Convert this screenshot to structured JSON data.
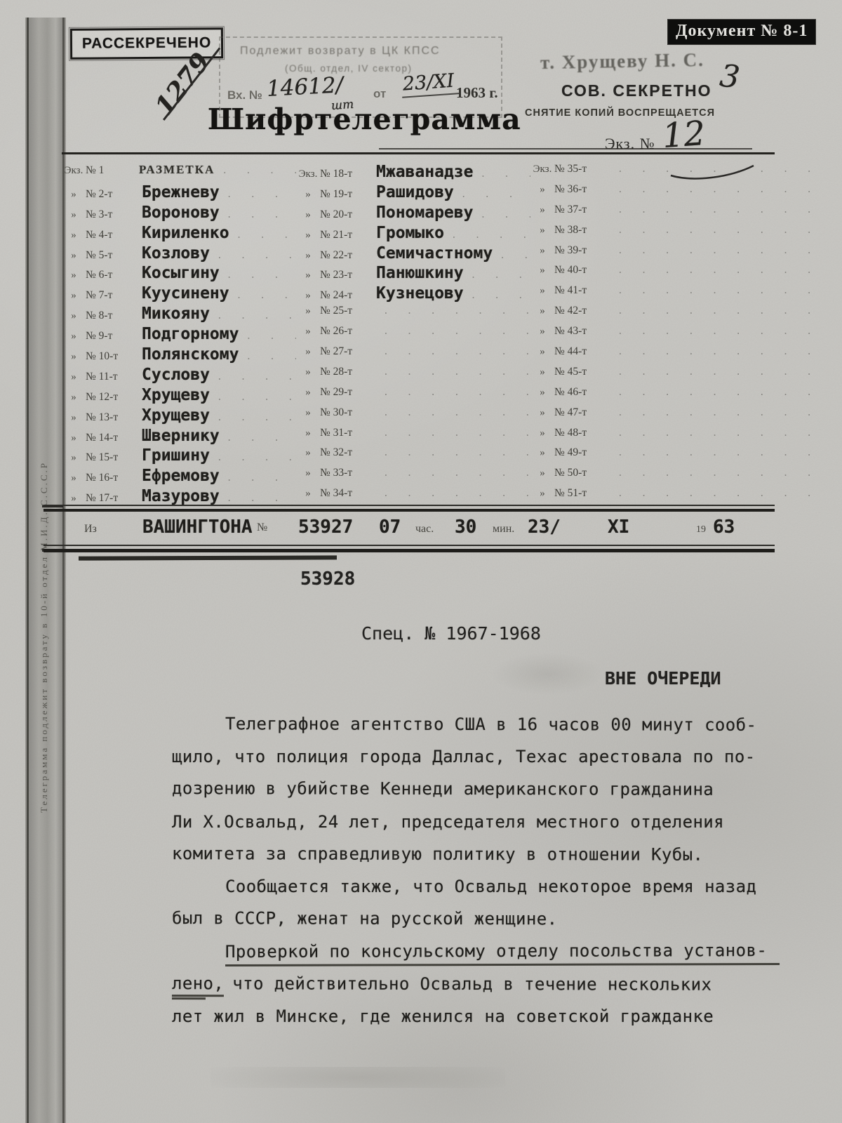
{
  "header": {
    "declassified": "РАССЕКРЕЧЕНО",
    "doc_badge": "Документ № 8-1",
    "reg_stamp": {
      "line1": "Подлежит возврату в ЦК КПСС",
      "line2": "(Общ. отдел, IV сектор)",
      "in_label": "Вх. №",
      "number_hw": "14612/",
      "suffix_hw": "шт",
      "from_label": "от",
      "date_hw": "23/XI",
      "year": "1963 г."
    },
    "hw_1279": "1279",
    "addressee_stamp": "т. Хрущеву Н. С.",
    "hw_3": "3",
    "secrecy": "СОВ. СЕКРЕТНО",
    "no_copies": "СНЯТИЕ КОПИЙ ВОСПРЕЩАЕТСЯ",
    "copy_label": "Экз. №",
    "copy_hw": "12",
    "title": "Шифртелеграмма"
  },
  "distribution": {
    "columns": [
      {
        "rows": [
          {
            "m": "Экз.",
            "n": "№ 1",
            "name": "РАЗМЕТКА",
            "print": true
          },
          {
            "m": "»",
            "n": "№ 2-т",
            "name": "Брежневу"
          },
          {
            "m": "»",
            "n": "№ 3-т",
            "name": "Воронову"
          },
          {
            "m": "»",
            "n": "№ 4-т",
            "name": "Кириленко"
          },
          {
            "m": "»",
            "n": "№ 5-т",
            "name": "Козлову"
          },
          {
            "m": "»",
            "n": "№ 6-т",
            "name": "Косыгину"
          },
          {
            "m": "»",
            "n": "№ 7-т",
            "name": "Куусинену"
          },
          {
            "m": "»",
            "n": "№ 8-т",
            "name": "Микояну"
          },
          {
            "m": "»",
            "n": "№ 9-т",
            "name": "Подгорному"
          },
          {
            "m": "»",
            "n": "№ 10-т",
            "name": "Полянскому"
          },
          {
            "m": "»",
            "n": "№ 11-т",
            "name": "Суслову"
          },
          {
            "m": "»",
            "n": "№ 12-т",
            "name": "Хрущеву"
          },
          {
            "m": "»",
            "n": "№ 13-т",
            "name": "Хрущеву"
          },
          {
            "m": "»",
            "n": "№ 14-т",
            "name": "Швернику"
          },
          {
            "m": "»",
            "n": "№ 15-т",
            "name": "Гришину"
          },
          {
            "m": "»",
            "n": "№ 16-т",
            "name": "Ефремову"
          },
          {
            "m": "»",
            "n": "№ 17-т",
            "name": "Мазурову"
          }
        ]
      },
      {
        "rows": [
          {
            "m": "Экз.",
            "n": "№ 18-т",
            "name": "Мжаванадзе"
          },
          {
            "m": "»",
            "n": "№ 19-т",
            "name": "Рашидову"
          },
          {
            "m": "»",
            "n": "№ 20-т",
            "name": "Пономареву"
          },
          {
            "m": "»",
            "n": "№ 21-т",
            "name": "Громыко"
          },
          {
            "m": "»",
            "n": "№ 22-т",
            "name": "Семичастному"
          },
          {
            "m": "»",
            "n": "№ 23-т",
            "name": "Панюшкину"
          },
          {
            "m": "»",
            "n": "№ 24-т",
            "name": "Кузнецову"
          },
          {
            "m": "»",
            "n": "№ 25-т",
            "name": ""
          },
          {
            "m": "»",
            "n": "№ 26-т",
            "name": ""
          },
          {
            "m": "»",
            "n": "№ 27-т",
            "name": ""
          },
          {
            "m": "»",
            "n": "№ 28-т",
            "name": ""
          },
          {
            "m": "»",
            "n": "№ 29-т",
            "name": ""
          },
          {
            "m": "»",
            "n": "№ 30-т",
            "name": ""
          },
          {
            "m": "»",
            "n": "№ 31-т",
            "name": ""
          },
          {
            "m": "»",
            "n": "№ 32-т",
            "name": ""
          },
          {
            "m": "»",
            "n": "№ 33-т",
            "name": ""
          },
          {
            "m": "»",
            "n": "№ 34-т",
            "name": ""
          }
        ]
      },
      {
        "rows": [
          {
            "m": "Экз.",
            "n": "№ 35-т",
            "name": ""
          },
          {
            "m": "»",
            "n": "№ 36-т",
            "name": ""
          },
          {
            "m": "»",
            "n": "№ 37-т",
            "name": ""
          },
          {
            "m": "»",
            "n": "№ 38-т",
            "name": ""
          },
          {
            "m": "»",
            "n": "№ 39-т",
            "name": ""
          },
          {
            "m": "»",
            "n": "№ 40-т",
            "name": ""
          },
          {
            "m": "»",
            "n": "№ 41-т",
            "name": ""
          },
          {
            "m": "»",
            "n": "№ 42-т",
            "name": ""
          },
          {
            "m": "»",
            "n": "№ 43-т",
            "name": ""
          },
          {
            "m": "»",
            "n": "№ 44-т",
            "name": ""
          },
          {
            "m": "»",
            "n": "№ 45-т",
            "name": ""
          },
          {
            "m": "»",
            "n": "№ 46-т",
            "name": ""
          },
          {
            "m": "»",
            "n": "№ 47-т",
            "name": ""
          },
          {
            "m": "»",
            "n": "№ 48-т",
            "name": ""
          },
          {
            "m": "»",
            "n": "№ 49-т",
            "name": ""
          },
          {
            "m": "»",
            "n": "№ 50-т",
            "name": ""
          },
          {
            "m": "»",
            "n": "№ 51-т",
            "name": ""
          }
        ]
      }
    ]
  },
  "origin": {
    "from_label": "Из",
    "city": "ВАШИНГТОНА",
    "no_label": "№",
    "number": "53927",
    "hours": "07",
    "hours_label": "час.",
    "minutes": "30",
    "minutes_label": "мин.",
    "day": "23/",
    "month": "XI",
    "year_prefix": "19",
    "year": "63"
  },
  "mid": {
    "second_number": "53928",
    "spec_number": "Спец. № 1967-1968",
    "priority": "ВНЕ ОЧЕРЕДИ"
  },
  "body": {
    "p1l1": "Телеграфное агентство США в 16 часов 00 минут сооб-",
    "p1l2": "щило, что полиция города Даллас, Техас арестовала по по-",
    "p1l3": "дозрению в убийстве Кеннеди американского гражданина",
    "p1l4": "Ли Х.Освальд, 24 лет, председателя местного отделения",
    "p1l5": "комитета за справедливую политику в отношении Кубы.",
    "p2l1": "Сообщается также, что Освальд некоторое время назад",
    "p2l2": "был в СССР, женат на русской женщине.",
    "p3l1": "Проверкой по консульскому отделу посольства установ-",
    "p3l2a": "лено,",
    "p3l2b": "что действительно Освальд в течение нескольких",
    "p3l3": "лет жил в Минске, где женился на советской гражданке"
  },
  "margin_note": "Телеграмма подлежит возврату в 10-й отдел М.И.Д.  С.С.С.Р"
}
